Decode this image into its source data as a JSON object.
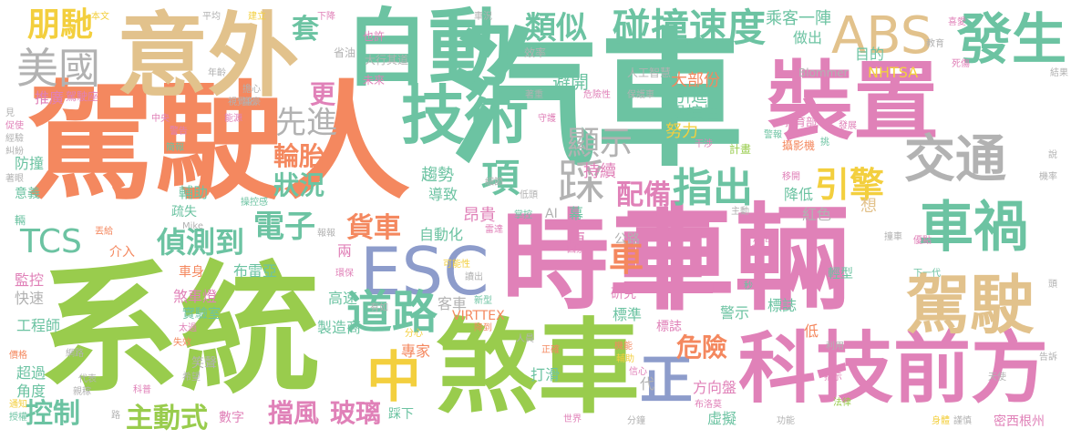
{
  "palette": {
    "green": "#99cc4d",
    "salmon": "#f4885f",
    "teal": "#6cc3a2",
    "pink": "#e081b8",
    "tan": "#e2c28c",
    "slate": "#8d9ccb",
    "gold": "#f3cf3e",
    "grey": "#b2b2b2"
  },
  "words": [
    {
      "text": "汽車",
      "color": "teal"
    },
    {
      "text": "車輛",
      "color": "pink"
    },
    {
      "text": "系統",
      "color": "green"
    },
    {
      "text": "駕駛人",
      "color": "salmon"
    },
    {
      "text": "時車",
      "color": "pink"
    },
    {
      "text": "煞車",
      "color": "green"
    },
    {
      "text": "科技前方",
      "color": "pink"
    },
    {
      "text": "意外",
      "color": "tan"
    },
    {
      "text": "自動",
      "color": "teal"
    },
    {
      "text": "裝置",
      "color": "pink"
    },
    {
      "text": "ESC",
      "color": "slate"
    },
    {
      "text": "技術",
      "color": "teal"
    },
    {
      "text": "駕駛",
      "color": "tan"
    },
    {
      "text": "車禍",
      "color": "teal"
    },
    {
      "text": "交通",
      "color": "grey"
    },
    {
      "text": "發生",
      "color": "teal"
    },
    {
      "text": "ABS",
      "color": "tan"
    },
    {
      "text": "碰撞速度",
      "color": "teal"
    },
    {
      "text": "中",
      "color": "gold"
    },
    {
      "text": "正",
      "color": "slate"
    },
    {
      "text": "道路",
      "color": "teal"
    },
    {
      "text": "美國",
      "color": "grey"
    },
    {
      "text": "朋馳",
      "color": "gold"
    },
    {
      "text": "踩",
      "color": "grey"
    },
    {
      "text": "項",
      "color": "teal"
    },
    {
      "text": "TCS",
      "color": "teal"
    },
    {
      "text": "偵測到",
      "color": "teal"
    },
    {
      "text": "電子",
      "color": "teal"
    },
    {
      "text": "指出",
      "color": "teal"
    },
    {
      "text": "引擎",
      "color": "gold"
    },
    {
      "text": "配備",
      "color": "pink"
    },
    {
      "text": "輪胎",
      "color": "salmon"
    },
    {
      "text": "狀況",
      "color": "teal"
    },
    {
      "text": "先進",
      "color": "grey"
    },
    {
      "text": "更",
      "color": "pink"
    },
    {
      "text": "套",
      "color": "teal"
    },
    {
      "text": "類似",
      "color": "teal"
    },
    {
      "text": "顯示",
      "color": "grey"
    },
    {
      "text": "貨車",
      "color": "salmon"
    },
    {
      "text": "危險",
      "color": "salmon"
    },
    {
      "text": "車",
      "color": "salmon"
    },
    {
      "text": "控制",
      "color": "teal"
    },
    {
      "text": "主動式",
      "color": "green"
    },
    {
      "text": "擋風",
      "color": "pink"
    },
    {
      "text": "玻璃",
      "color": "pink"
    },
    {
      "text": "乘客",
      "color": "teal"
    },
    {
      "text": "一陣",
      "color": "teal"
    },
    {
      "text": "也許",
      "color": "pink"
    },
    {
      "text": "省油",
      "color": "grey"
    },
    {
      "text": "效率",
      "color": "grey"
    },
    {
      "text": "大行其道",
      "color": "grey"
    },
    {
      "text": "未來",
      "color": "pink"
    },
    {
      "text": "避開",
      "color": "teal"
    },
    {
      "text": "人工智慧",
      "color": "grey"
    },
    {
      "text": "大部份",
      "color": "salmon"
    },
    {
      "text": "引進",
      "color": "teal"
    },
    {
      "text": "操控性",
      "color": "teal"
    },
    {
      "text": "努力",
      "color": "gold"
    },
    {
      "text": "做出",
      "color": "teal"
    },
    {
      "text": "目的",
      "color": "teal"
    },
    {
      "text": "NHTSA",
      "color": "gold"
    },
    {
      "text": "Blommer",
      "color": "grey"
    },
    {
      "text": "教育部",
      "color": "pink"
    },
    {
      "text": "攝影機",
      "color": "salmon"
    },
    {
      "text": "計畫",
      "color": "green"
    },
    {
      "text": "持續",
      "color": "pink"
    },
    {
      "text": "趨勢",
      "color": "teal"
    },
    {
      "text": "導致",
      "color": "teal"
    },
    {
      "text": "昂貴",
      "color": "pink"
    },
    {
      "text": "自動化",
      "color": "teal"
    },
    {
      "text": "幕",
      "color": "teal"
    },
    {
      "text": "紅色",
      "color": "grey"
    },
    {
      "text": "降低",
      "color": "teal"
    },
    {
      "text": "想",
      "color": "tan"
    },
    {
      "text": "推廣",
      "color": "pink"
    },
    {
      "text": "駕駛座",
      "color": "pink"
    },
    {
      "text": "輔助",
      "color": "teal"
    },
    {
      "text": "疏失",
      "color": "teal"
    },
    {
      "text": "防撞",
      "color": "teal"
    },
    {
      "text": "意義",
      "color": "teal"
    },
    {
      "text": "介入",
      "color": "salmon"
    },
    {
      "text": "車身",
      "color": "salmon"
    },
    {
      "text": "布雷亞",
      "color": "teal"
    },
    {
      "text": "監控",
      "color": "pink"
    },
    {
      "text": "快速",
      "color": "grey"
    },
    {
      "text": "煞車燈",
      "color": "pink"
    },
    {
      "text": "實驗室",
      "color": "teal"
    },
    {
      "text": "高速",
      "color": "teal"
    },
    {
      "text": "兩",
      "color": "pink"
    },
    {
      "text": "客車",
      "color": "grey"
    },
    {
      "text": "工程師",
      "color": "teal"
    },
    {
      "text": "製造商",
      "color": "teal"
    },
    {
      "text": "專家",
      "color": "salmon"
    },
    {
      "text": "VIRTTEX",
      "color": "salmon"
    },
    {
      "text": "研究",
      "color": "pink"
    },
    {
      "text": "標準",
      "color": "teal"
    },
    {
      "text": "標誌",
      "color": "pink"
    },
    {
      "text": "警示",
      "color": "teal"
    },
    {
      "text": "標誌",
      "color": "teal"
    },
    {
      "text": "低",
      "color": "salmon"
    },
    {
      "text": "輕型",
      "color": "teal"
    },
    {
      "text": "超過",
      "color": "teal"
    },
    {
      "text": "角度",
      "color": "teal"
    },
    {
      "text": "數字",
      "color": "pink"
    },
    {
      "text": "笑聲",
      "color": "grey"
    },
    {
      "text": "踩下",
      "color": "teal"
    },
    {
      "text": "打滑",
      "color": "teal"
    },
    {
      "text": "方向盤",
      "color": "pink"
    },
    {
      "text": "虛擬",
      "color": "teal"
    },
    {
      "text": "密西根州",
      "color": "pink"
    },
    {
      "text": "公路",
      "color": "grey"
    },
    {
      "text": "便",
      "color": "pink"
    },
    {
      "text": "AI",
      "color": "grey"
    },
    {
      "text": "Mike",
      "color": "grey"
    },
    {
      "text": "代",
      "color": "grey"
    },
    {
      "text": "本文",
      "color": "gold"
    },
    {
      "text": "平均",
      "color": "grey"
    },
    {
      "text": "建立",
      "color": "gold"
    },
    {
      "text": "下降",
      "color": "pink"
    },
    {
      "text": "車況",
      "color": "grey"
    },
    {
      "text": "年齡",
      "color": "grey"
    },
    {
      "text": "擔心",
      "color": "grey"
    },
    {
      "text": "富豪",
      "color": "grey"
    },
    {
      "text": "視覺化",
      "color": "grey"
    },
    {
      "text": "能源",
      "color": "pink"
    },
    {
      "text": "中央",
      "color": "pink"
    },
    {
      "text": "警告",
      "color": "pink"
    },
    {
      "text": "簡報",
      "color": "teal"
    },
    {
      "text": "著重",
      "color": "grey"
    },
    {
      "text": "危險性",
      "color": "pink"
    },
    {
      "text": "保護車",
      "color": "grey"
    },
    {
      "text": "守護",
      "color": "pink"
    },
    {
      "text": "干涉",
      "color": "pink"
    },
    {
      "text": "警報",
      "color": "teal"
    },
    {
      "text": "挑",
      "color": "teal"
    },
    {
      "text": "發展",
      "color": "pink"
    },
    {
      "text": "教育",
      "color": "grey"
    },
    {
      "text": "死傷",
      "color": "pink"
    },
    {
      "text": "喜愛",
      "color": "pink"
    },
    {
      "text": "結果",
      "color": "grey"
    },
    {
      "text": "說",
      "color": "grey"
    },
    {
      "text": "機率",
      "color": "grey"
    },
    {
      "text": "移開",
      "color": "pink"
    },
    {
      "text": "見",
      "color": "grey"
    },
    {
      "text": "促使",
      "color": "pink"
    },
    {
      "text": "經驗",
      "color": "grey"
    },
    {
      "text": "糾紛",
      "color": "grey"
    },
    {
      "text": "著眼",
      "color": "grey"
    },
    {
      "text": "輛",
      "color": "teal"
    },
    {
      "text": "丟給",
      "color": "salmon"
    },
    {
      "text": "操控感",
      "color": "teal"
    },
    {
      "text": "細節",
      "color": "grey"
    },
    {
      "text": "低頭",
      "color": "grey"
    },
    {
      "text": "掌控",
      "color": "teal"
    },
    {
      "text": "雷達",
      "color": "pink"
    },
    {
      "text": "報報",
      "color": "grey"
    },
    {
      "text": "環保",
      "color": "pink"
    },
    {
      "text": "可能性",
      "color": "gold"
    },
    {
      "text": "讀出",
      "color": "grey"
    },
    {
      "text": "新型",
      "color": "teal"
    },
    {
      "text": "降到",
      "color": "salmon"
    },
    {
      "text": "因素",
      "color": "pink"
    },
    {
      "text": "主動",
      "color": "grey"
    },
    {
      "text": "加倍",
      "color": "pink"
    },
    {
      "text": "轉載",
      "color": "pink"
    },
    {
      "text": "撞車",
      "color": "grey"
    },
    {
      "text": "優點",
      "color": "pink"
    },
    {
      "text": "具備",
      "color": "pink"
    },
    {
      "text": "秒",
      "color": "teal"
    },
    {
      "text": "下一代",
      "color": "teal"
    },
    {
      "text": "頭",
      "color": "grey"
    },
    {
      "text": "利用",
      "color": "grey"
    },
    {
      "text": "告訴",
      "color": "grey"
    },
    {
      "text": "天使",
      "color": "grey"
    },
    {
      "text": "指示",
      "color": "pink"
    },
    {
      "text": "法律",
      "color": "green"
    },
    {
      "text": "功能",
      "color": "grey"
    },
    {
      "text": "身體",
      "color": "gold"
    },
    {
      "text": "謹慎",
      "color": "grey"
    },
    {
      "text": "布洛莫",
      "color": "pink"
    },
    {
      "text": "分鐘",
      "color": "grey"
    },
    {
      "text": "世界",
      "color": "pink"
    },
    {
      "text": "機能",
      "color": "salmon"
    },
    {
      "text": "輔助",
      "color": "gold"
    },
    {
      "text": "信心",
      "color": "pink"
    },
    {
      "text": "正確",
      "color": "salmon"
    },
    {
      "text": "人員",
      "color": "grey"
    },
    {
      "text": "分心",
      "color": "gold"
    },
    {
      "text": "有如",
      "color": "grey"
    },
    {
      "text": "太過",
      "color": "pink"
    },
    {
      "text": "失效",
      "color": "salmon"
    },
    {
      "text": "希望",
      "color": "grey"
    },
    {
      "text": "科普",
      "color": "pink"
    },
    {
      "text": "代表",
      "color": "grey"
    },
    {
      "text": "親稼",
      "color": "grey"
    },
    {
      "text": "路",
      "color": "grey"
    },
    {
      "text": "網路",
      "color": "grey"
    },
    {
      "text": "價格",
      "color": "salmon"
    },
    {
      "text": "通知",
      "color": "gold"
    },
    {
      "text": "授權",
      "color": "teal"
    }
  ]
}
